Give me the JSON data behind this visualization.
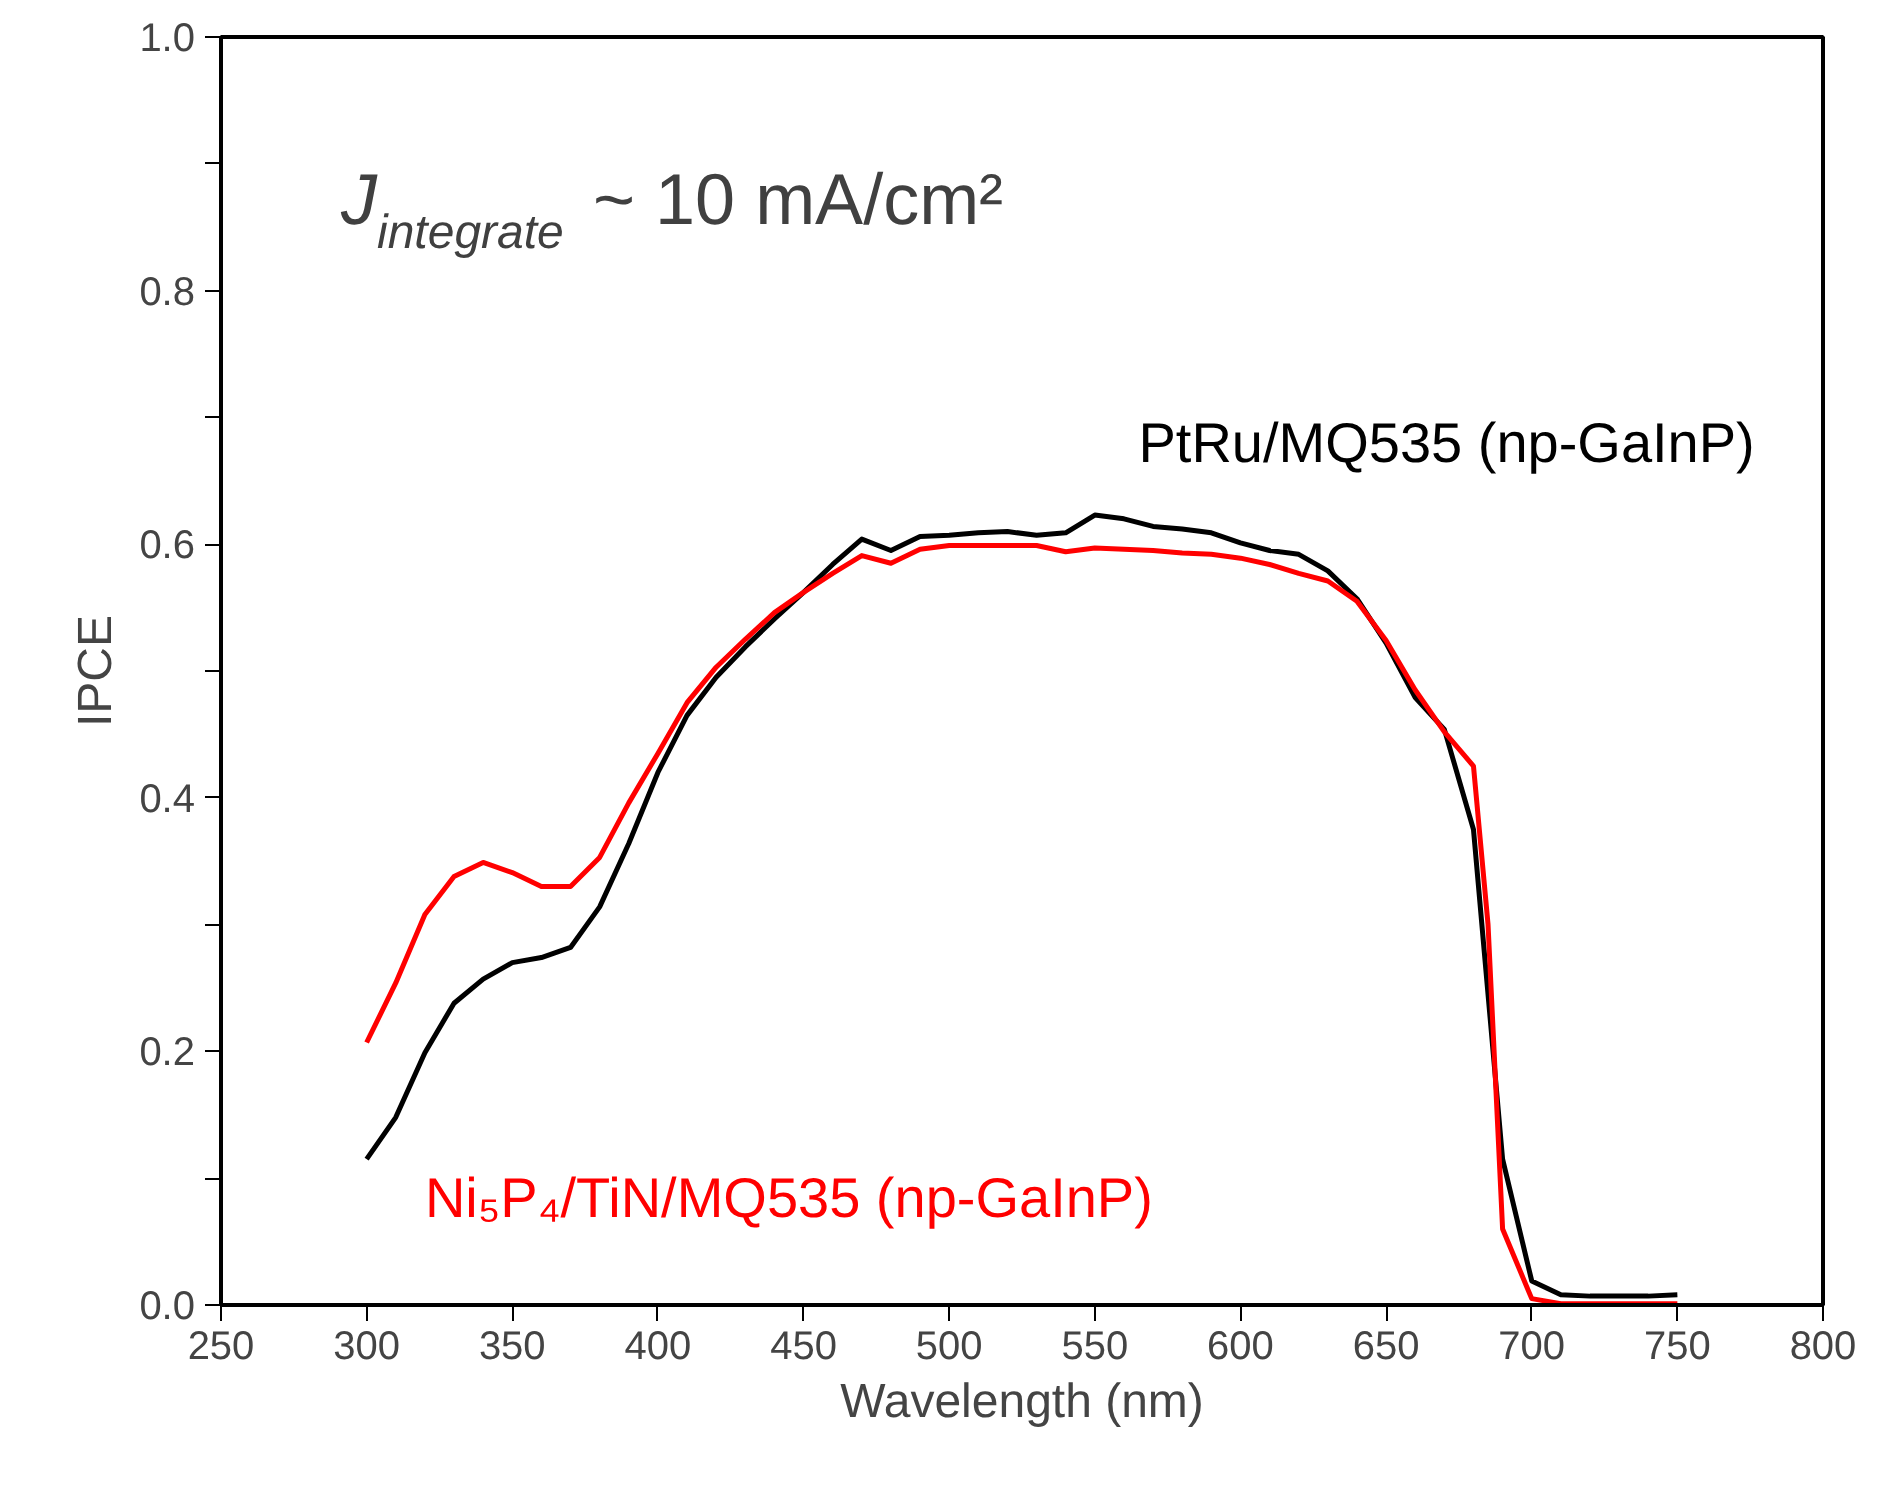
{
  "chart_data": {
    "type": "line",
    "xlabel": "Wavelength (nm)",
    "ylabel": "IPCE",
    "annotations": [
      "J$_{integrate}$ ~ 10 mA/cm²"
    ],
    "series": [
      {
        "name": "PtRu/MQ535 (np-GaInP)",
        "color": "#000000",
        "x": [
          300,
          310,
          320,
          330,
          340,
          350,
          360,
          370,
          380,
          390,
          400,
          410,
          420,
          430,
          440,
          450,
          460,
          470,
          480,
          490,
          500,
          510,
          520,
          530,
          540,
          550,
          560,
          570,
          580,
          590,
          600,
          610,
          620,
          630,
          640,
          650,
          660,
          670,
          680,
          690,
          700,
          710,
          720,
          730,
          740,
          750
        ],
        "values": [
          0.115,
          0.148,
          0.199,
          0.238,
          0.257,
          0.27,
          0.274,
          0.282,
          0.314,
          0.364,
          0.42,
          0.465,
          0.495,
          0.519,
          0.541,
          0.562,
          0.584,
          0.604,
          0.595,
          0.606,
          0.607,
          0.609,
          0.61,
          0.607,
          0.609,
          0.623,
          0.62,
          0.614,
          0.612,
          0.609,
          0.601,
          0.595,
          0.592,
          0.579,
          0.557,
          0.522,
          0.479,
          0.454,
          0.375,
          0.115,
          0.019,
          0.008,
          0.007,
          0.007,
          0.007,
          0.008
        ]
      },
      {
        "name": "Ni₅P₄/TiN/MQ535 (np-GaInP)",
        "color": "#ff0000",
        "x": [
          300,
          310,
          320,
          330,
          340,
          350,
          360,
          370,
          380,
          390,
          400,
          410,
          420,
          430,
          440,
          450,
          460,
          470,
          480,
          490,
          500,
          510,
          520,
          530,
          540,
          550,
          560,
          570,
          580,
          590,
          600,
          610,
          620,
          630,
          640,
          650,
          660,
          670,
          680,
          685,
          690,
          700,
          710,
          720,
          730,
          740,
          750
        ],
        "values": [
          0.207,
          0.254,
          0.308,
          0.338,
          0.349,
          0.341,
          0.33,
          0.33,
          0.353,
          0.396,
          0.435,
          0.475,
          0.503,
          0.525,
          0.546,
          0.562,
          0.577,
          0.591,
          0.585,
          0.596,
          0.599,
          0.599,
          0.599,
          0.599,
          0.594,
          0.597,
          0.596,
          0.595,
          0.593,
          0.592,
          0.589,
          0.584,
          0.577,
          0.571,
          0.555,
          0.524,
          0.485,
          0.452,
          0.425,
          0.3,
          0.06,
          0.005,
          0.001,
          0.001,
          0.001,
          0.001,
          0.001
        ]
      }
    ],
    "xlim": [
      250,
      800
    ],
    "xticks": [
      250,
      300,
      350,
      400,
      450,
      500,
      550,
      600,
      650,
      700,
      750,
      800
    ],
    "ylim": [
      0,
      1
    ],
    "yticks": [
      {
        "value": 0,
        "label": "0.0"
      },
      {
        "value": 0.1,
        "label": null
      },
      {
        "value": 0.2,
        "label": "0.2"
      },
      {
        "value": 0.3,
        "label": null
      },
      {
        "value": 0.4,
        "label": "0.4"
      },
      {
        "value": 0.5,
        "label": null
      },
      {
        "value": 0.6,
        "label": "0.6"
      },
      {
        "value": 0.7,
        "label": null
      },
      {
        "value": 0.8,
        "label": "0.8"
      },
      {
        "value": 0.9,
        "label": null
      },
      {
        "value": 1.0,
        "label": "1.0"
      }
    ],
    "grid": false,
    "legend": false,
    "line_style": "solid",
    "marker": "none"
  }
}
